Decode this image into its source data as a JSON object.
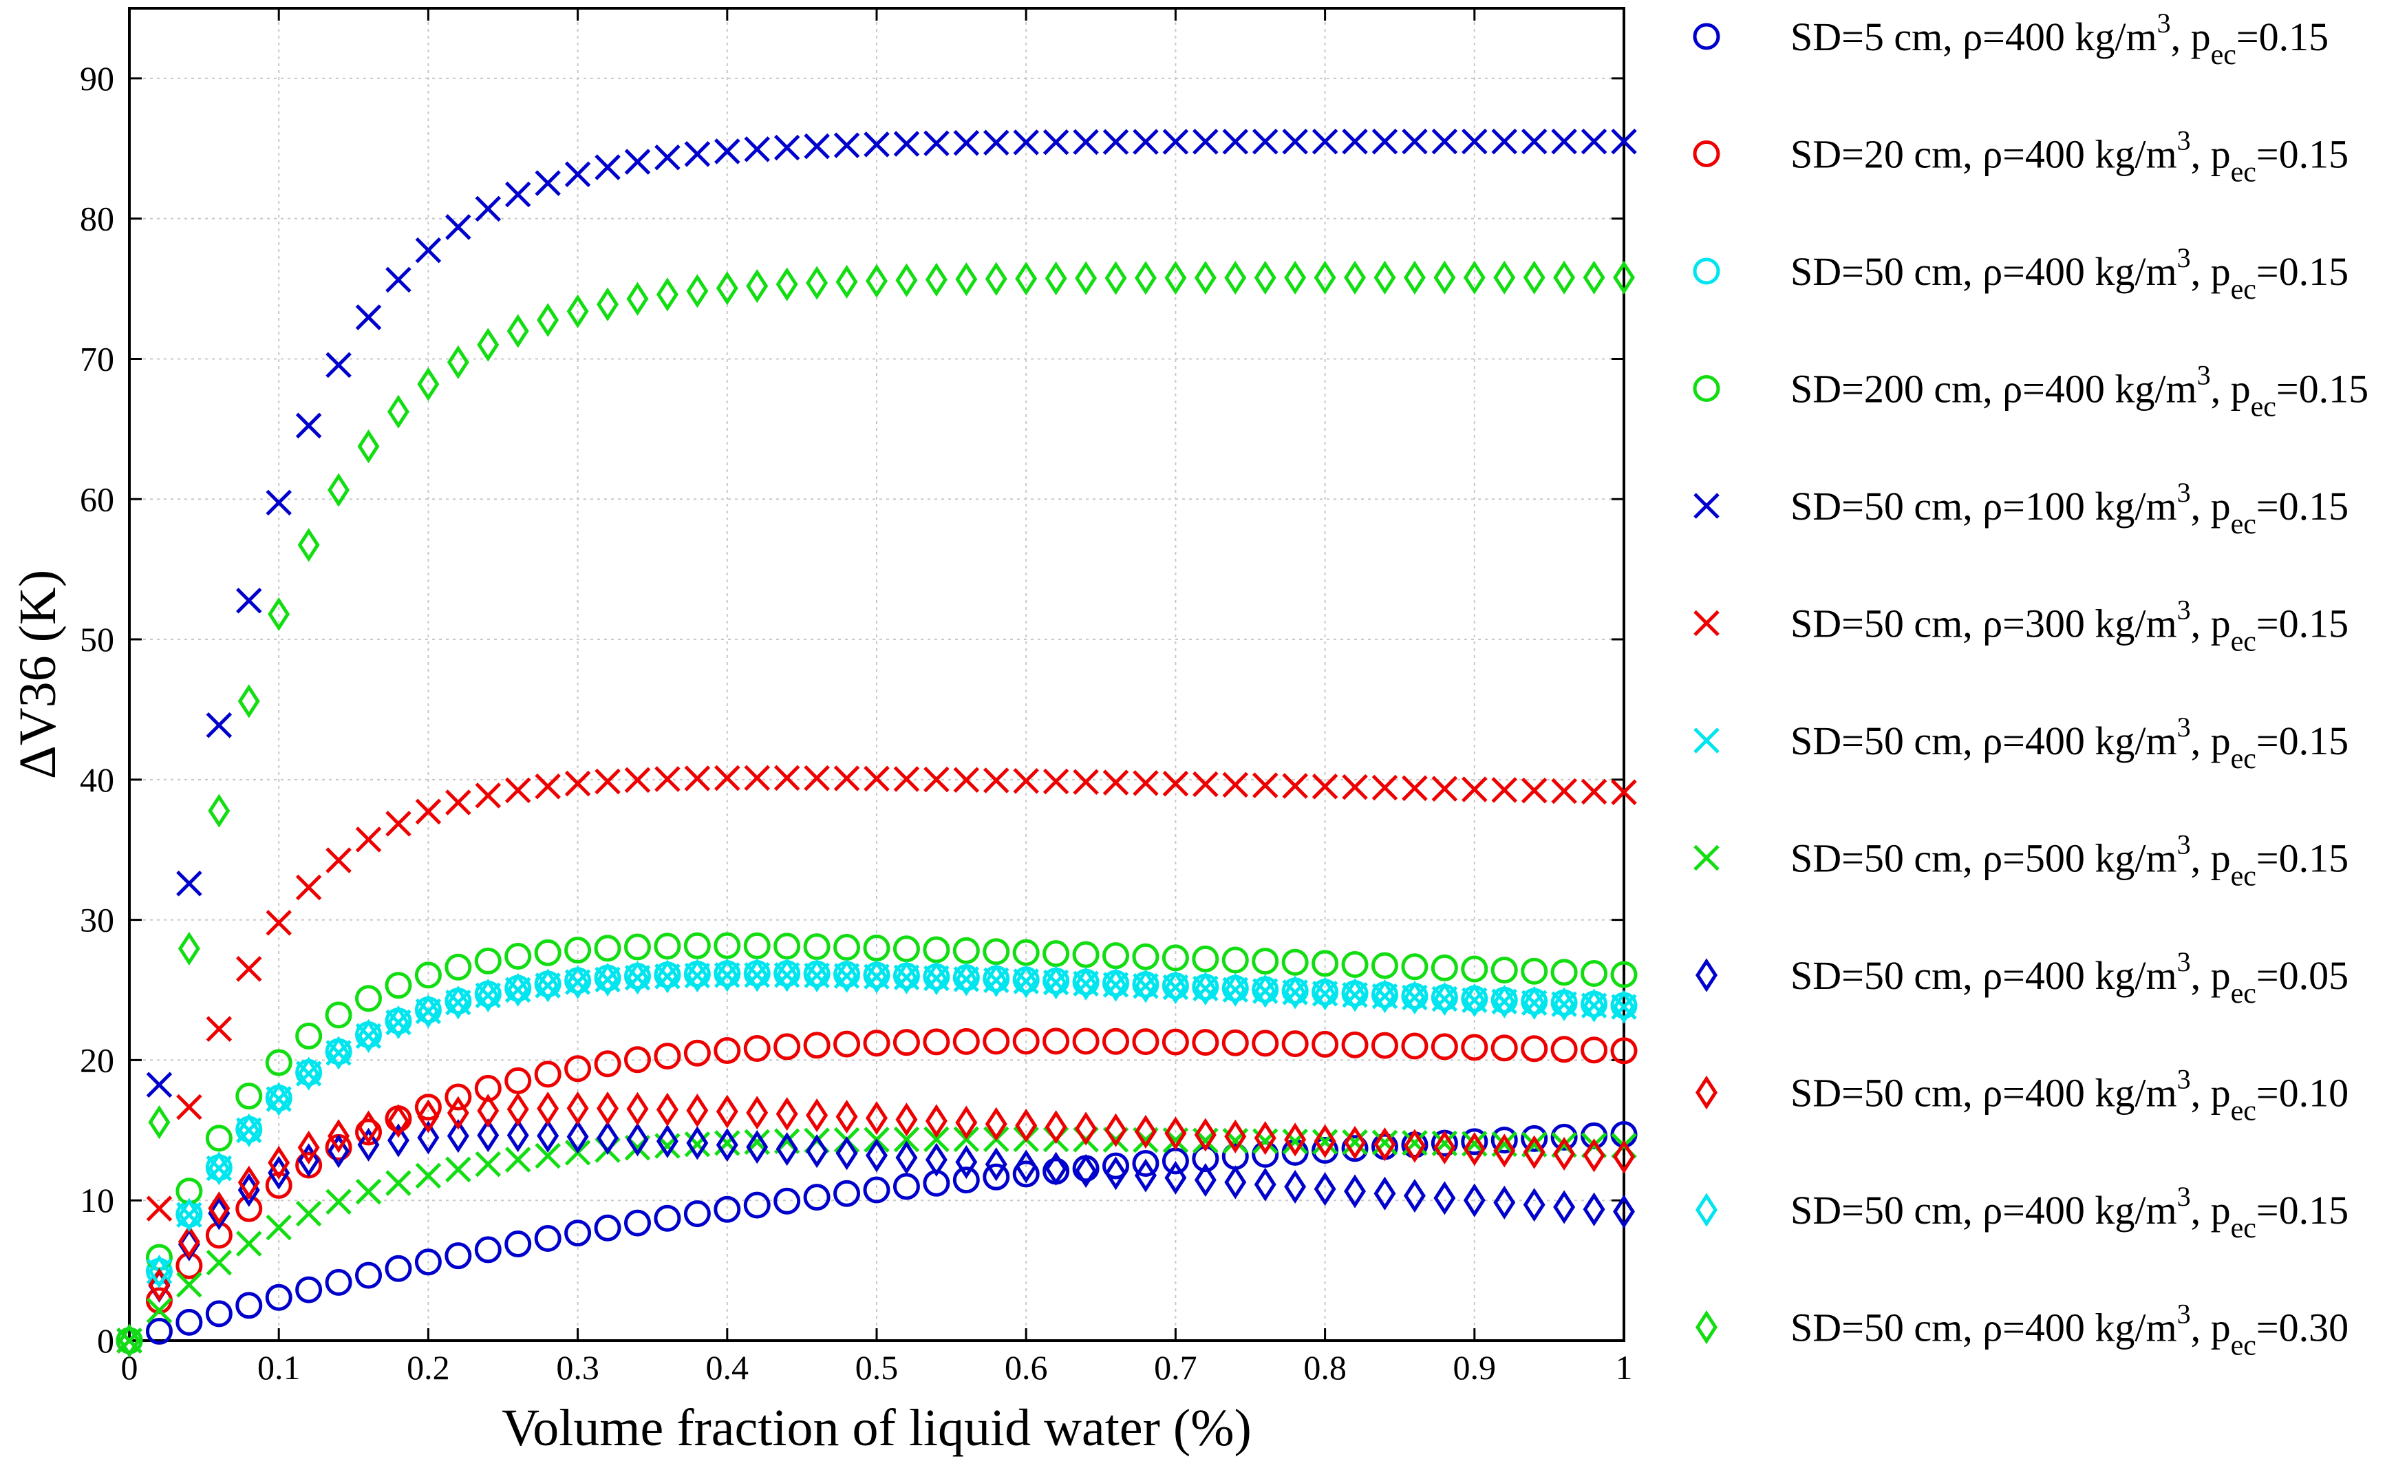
{
  "chart_data": {
    "type": "scatter",
    "title": "",
    "xlabel": "Volume fraction of liquid water (%)",
    "ylabel": "ΔV36 (K)",
    "xlim": [
      0,
      1
    ],
    "ylim": [
      0,
      95
    ],
    "x_ticks": [
      0,
      0.1,
      0.2,
      0.3,
      0.4,
      0.5,
      0.6,
      0.7,
      0.8,
      0.9,
      1
    ],
    "x_tick_labels": [
      "0",
      "0.1",
      "0.2",
      "0.3",
      "0.4",
      "0.5",
      "0.6",
      "0.7",
      "0.8",
      "0.9",
      "1"
    ],
    "y_ticks": [
      0,
      10,
      20,
      30,
      40,
      50,
      60,
      70,
      80,
      90
    ],
    "y_tick_labels": [
      "0",
      "10",
      "20",
      "30",
      "40",
      "50",
      "60",
      "70",
      "80",
      "90"
    ],
    "grid": true,
    "legend_position": "right-outside",
    "x_step": 0.02,
    "series": [
      {
        "name": "SD=5 cm, ρ=400 kg/m3, pec=0.15",
        "label_main": "SD=5 cm, ρ=400 kg/m",
        "label_exp": "3",
        "label_mid": ", p",
        "label_sub": "ec",
        "label_end": "=0.15",
        "marker": "o",
        "color": "#0000CC",
        "shape": "curve",
        "max": 17,
        "k": 2,
        "decay": 0,
        "c": 0.01
      },
      {
        "name": "SD=20 cm, ρ=400 kg/m3, pec=0.15",
        "label_main": "SD=20 cm, ρ=400 kg/m",
        "label_exp": "3",
        "label_mid": ", p",
        "label_sub": "ec",
        "label_end": "=0.15",
        "marker": "o",
        "color": "#EE0000",
        "shape": "curve",
        "max": 20.7,
        "k": 6.5,
        "decay": 0.35,
        "c": 0.01
      },
      {
        "name": "SD=50 cm, ρ=400 kg/m3, pec=0.15",
        "label_main": "SD=50 cm, ρ=400 kg/m",
        "label_exp": "3",
        "label_mid": ", p",
        "label_sub": "ec",
        "label_end": "=0.15",
        "marker": "o",
        "color": "#00E5EE",
        "shape": "curve",
        "max": 23.9,
        "k": 9.5,
        "decay": 0.5,
        "c": 0.01
      },
      {
        "name": "SD=200 cm, ρ=400 kg/m3, pec=0.15",
        "label_main": "SD=200 cm, ρ=400 kg/m",
        "label_exp": "3",
        "label_mid": ", p",
        "label_sub": "ec",
        "label_end": "=0.15",
        "marker": "o",
        "color": "#11DD11",
        "shape": "curve",
        "max": 26.1,
        "k": 11,
        "decay": 0.4,
        "c": 0.01
      },
      {
        "name": "SD=50 cm, ρ=100 kg/m3, pec=0.15",
        "label_main": "SD=50 cm, ρ=100 kg/m",
        "label_exp": "3",
        "label_mid": ", p",
        "label_sub": "ec",
        "label_end": "=0.15",
        "marker": "x",
        "color": "#0000CC",
        "shape": "curve",
        "max": 85.5,
        "k": 12,
        "decay": 0,
        "c": 0.01
      },
      {
        "name": "SD=50 cm, ρ=300 kg/m3, pec=0.15",
        "label_main": "SD=50 cm, ρ=300 kg/m",
        "label_exp": "3",
        "label_mid": ", p",
        "label_sub": "ec",
        "label_end": "=0.15",
        "marker": "x",
        "color": "#EE0000",
        "shape": "curve",
        "max": 39.1,
        "k": 13,
        "decay": 0.15,
        "c": 0.01
      },
      {
        "name": "SD=50 cm, ρ=400 kg/m3, pec=0.15",
        "label_main": "SD=50 cm, ρ=400 kg/m",
        "label_exp": "3",
        "label_mid": ", p",
        "label_sub": "ec",
        "label_end": "=0.15",
        "marker": "x",
        "color": "#00E5EE",
        "shape": "curve",
        "max": 23.8,
        "k": 9.5,
        "decay": 0.5,
        "c": 0.01
      },
      {
        "name": "SD=50 cm, ρ=500 kg/m3, pec=0.15",
        "label_main": "SD=50 cm, ρ=500 kg/m",
        "label_exp": "3",
        "label_mid": ", p",
        "label_sub": "ec",
        "label_end": "=0.15",
        "marker": "x",
        "color": "#11DD11",
        "shape": "curve",
        "max": 13.9,
        "k": 7.5,
        "decay": 0.3,
        "c": 0.01
      },
      {
        "name": "SD=50 cm, ρ=400 kg/m3, pec=0.05",
        "label_main": "SD=50 cm, ρ=400 kg/m",
        "label_exp": "3",
        "label_mid": ", p",
        "label_sub": "ec",
        "label_end": "=0.05",
        "marker": "d",
        "color": "#0000CC",
        "shape": "peak",
        "max": 9.2,
        "k": 13,
        "decay": 1.4,
        "c": 0.01
      },
      {
        "name": "SD=50 cm, ρ=400 kg/m3, pec=0.10",
        "label_main": "SD=50 cm, ρ=400 kg/m",
        "label_exp": "3",
        "label_mid": ", p",
        "label_sub": "ec",
        "label_end": "=0.10",
        "marker": "d",
        "color": "#EE0000",
        "shape": "peak",
        "max": 13.1,
        "k": 12,
        "decay": 0.9,
        "c": 0.01
      },
      {
        "name": "SD=50 cm, ρ=400 kg/m3, pec=0.15",
        "label_main": "SD=50 cm, ρ=400 kg/m",
        "label_exp": "3",
        "label_mid": ", p",
        "label_sub": "ec",
        "label_end": "=0.15",
        "marker": "d",
        "color": "#00E5EE",
        "shape": "curve",
        "max": 23.8,
        "k": 9.5,
        "decay": 0.5,
        "c": 0.01
      },
      {
        "name": "SD=50 cm, ρ=400 kg/m3, pec=0.30",
        "label_main": "SD=50 cm, ρ=400 kg/m",
        "label_exp": "3",
        "label_mid": ", p",
        "label_sub": "ec",
        "label_end": "=0.30",
        "marker": "d",
        "color": "#11DD11",
        "shape": "curve",
        "max": 75.8,
        "k": 11.5,
        "decay": 0,
        "c": 0.01
      }
    ]
  }
}
